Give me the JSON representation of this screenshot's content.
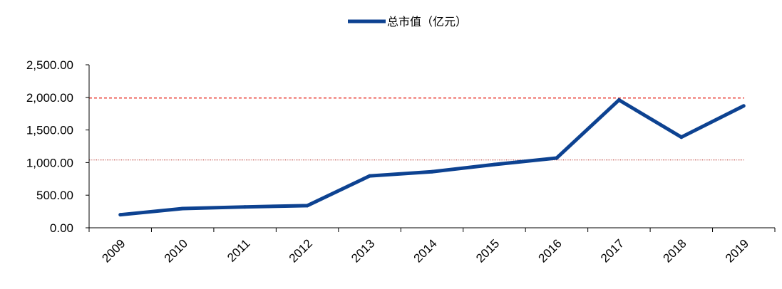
{
  "chart_data": {
    "type": "line",
    "title": "",
    "xlabel": "",
    "ylabel": "",
    "categories": [
      "2009",
      "2010",
      "2011",
      "2012",
      "2013",
      "2014",
      "2015",
      "2016",
      "2017",
      "2018",
      "2019"
    ],
    "series": [
      {
        "name": "总市值（亿元）",
        "color": "#0d4291",
        "values": [
          200,
          295,
          320,
          340,
          795,
          860,
          970,
          1070,
          1960,
          1390,
          1870
        ]
      }
    ],
    "ylim": [
      0,
      2500
    ],
    "yticks": [
      0,
      500,
      1000,
      1500,
      2000,
      2500
    ],
    "ytick_labels": [
      "0.00",
      "500.00",
      "1,000.00",
      "1,500.00",
      "2,000.00",
      "2,500.00"
    ],
    "reference_lines": [
      {
        "value": 1990,
        "style": "dashed",
        "color": "#e8281e"
      },
      {
        "value": 1040,
        "style": "dotted",
        "color": "#b01f17"
      }
    ],
    "grid": false,
    "legend_position": "top-center"
  }
}
